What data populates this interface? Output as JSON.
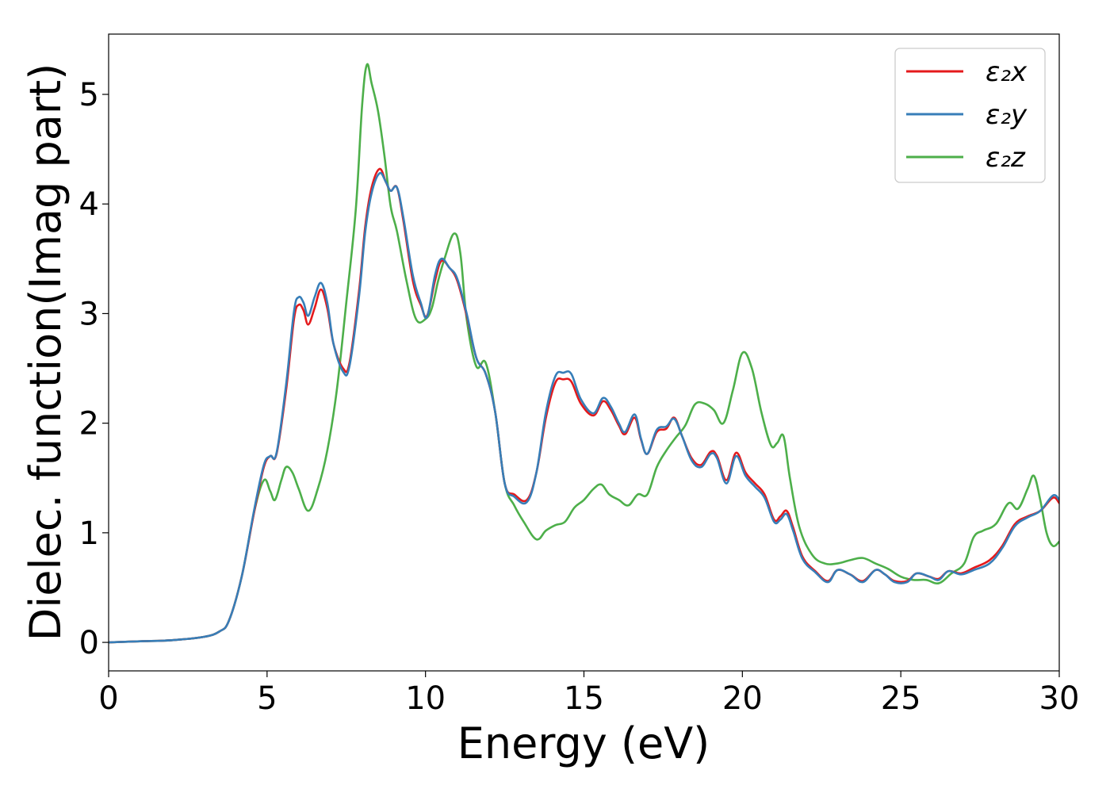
{
  "chart_data": {
    "type": "line",
    "title": "",
    "xlabel": "Energy (eV)",
    "ylabel": "Dielec. function(Imag part)",
    "xlim": [
      0,
      30
    ],
    "ylim": [
      -0.26,
      5.55
    ],
    "xticks": [
      0,
      5,
      10,
      15,
      20,
      25,
      30
    ],
    "yticks": [
      0,
      1,
      2,
      3,
      4,
      5
    ],
    "grid": false,
    "legend_position": "top-right",
    "series": [
      {
        "name": "ε₂x",
        "color": "#e41a1c",
        "points": [
          [
            0,
            0
          ],
          [
            1,
            0.01
          ],
          [
            2,
            0.02
          ],
          [
            3,
            0.05
          ],
          [
            3.5,
            0.1
          ],
          [
            3.8,
            0.2
          ],
          [
            4.2,
            0.6
          ],
          [
            4.6,
            1.2
          ],
          [
            4.9,
            1.6
          ],
          [
            5.1,
            1.7
          ],
          [
            5.3,
            1.72
          ],
          [
            5.6,
            2.3
          ],
          [
            5.85,
            2.95
          ],
          [
            6.0,
            3.08
          ],
          [
            6.15,
            3.03
          ],
          [
            6.3,
            2.9
          ],
          [
            6.5,
            3.05
          ],
          [
            6.7,
            3.22
          ],
          [
            6.9,
            3.05
          ],
          [
            7.1,
            2.72
          ],
          [
            7.4,
            2.5
          ],
          [
            7.6,
            2.55
          ],
          [
            7.9,
            3.2
          ],
          [
            8.1,
            3.8
          ],
          [
            8.3,
            4.15
          ],
          [
            8.55,
            4.32
          ],
          [
            8.75,
            4.2
          ],
          [
            8.9,
            4.12
          ],
          [
            9.1,
            4.15
          ],
          [
            9.3,
            3.85
          ],
          [
            9.6,
            3.3
          ],
          [
            9.85,
            3.08
          ],
          [
            10.05,
            2.98
          ],
          [
            10.3,
            3.3
          ],
          [
            10.5,
            3.48
          ],
          [
            10.75,
            3.42
          ],
          [
            11.0,
            3.3
          ],
          [
            11.3,
            2.98
          ],
          [
            11.6,
            2.6
          ],
          [
            11.9,
            2.45
          ],
          [
            12.2,
            2.1
          ],
          [
            12.5,
            1.45
          ],
          [
            12.8,
            1.35
          ],
          [
            13.2,
            1.3
          ],
          [
            13.5,
            1.55
          ],
          [
            13.8,
            2.05
          ],
          [
            14.1,
            2.37
          ],
          [
            14.35,
            2.4
          ],
          [
            14.6,
            2.38
          ],
          [
            14.9,
            2.18
          ],
          [
            15.3,
            2.07
          ],
          [
            15.6,
            2.2
          ],
          [
            15.85,
            2.12
          ],
          [
            16.1,
            1.98
          ],
          [
            16.3,
            1.9
          ],
          [
            16.6,
            2.05
          ],
          [
            16.8,
            1.85
          ],
          [
            17.0,
            1.72
          ],
          [
            17.3,
            1.92
          ],
          [
            17.6,
            1.95
          ],
          [
            17.85,
            2.05
          ],
          [
            18.1,
            1.88
          ],
          [
            18.4,
            1.68
          ],
          [
            18.7,
            1.62
          ],
          [
            19.0,
            1.74
          ],
          [
            19.2,
            1.7
          ],
          [
            19.5,
            1.48
          ],
          [
            19.8,
            1.73
          ],
          [
            20.1,
            1.55
          ],
          [
            20.4,
            1.45
          ],
          [
            20.7,
            1.35
          ],
          [
            21.0,
            1.12
          ],
          [
            21.2,
            1.15
          ],
          [
            21.4,
            1.2
          ],
          [
            21.6,
            1.05
          ],
          [
            21.9,
            0.78
          ],
          [
            22.3,
            0.65
          ],
          [
            22.7,
            0.56
          ],
          [
            23.0,
            0.66
          ],
          [
            23.4,
            0.62
          ],
          [
            23.8,
            0.56
          ],
          [
            24.2,
            0.66
          ],
          [
            24.5,
            0.62
          ],
          [
            24.8,
            0.56
          ],
          [
            25.2,
            0.56
          ],
          [
            25.5,
            0.63
          ],
          [
            25.9,
            0.6
          ],
          [
            26.2,
            0.58
          ],
          [
            26.5,
            0.65
          ],
          [
            26.9,
            0.63
          ],
          [
            27.3,
            0.68
          ],
          [
            27.8,
            0.75
          ],
          [
            28.2,
            0.88
          ],
          [
            28.6,
            1.08
          ],
          [
            29.0,
            1.15
          ],
          [
            29.4,
            1.2
          ],
          [
            29.8,
            1.32
          ],
          [
            30.0,
            1.27
          ]
        ]
      },
      {
        "name": "ε₂y",
        "color": "#377eb8",
        "points": [
          [
            0,
            0
          ],
          [
            1,
            0.01
          ],
          [
            2,
            0.02
          ],
          [
            3,
            0.05
          ],
          [
            3.5,
            0.1
          ],
          [
            3.8,
            0.2
          ],
          [
            4.2,
            0.6
          ],
          [
            4.6,
            1.22
          ],
          [
            4.9,
            1.62
          ],
          [
            5.1,
            1.7
          ],
          [
            5.3,
            1.73
          ],
          [
            5.6,
            2.35
          ],
          [
            5.85,
            3.02
          ],
          [
            6.0,
            3.15
          ],
          [
            6.15,
            3.1
          ],
          [
            6.3,
            2.98
          ],
          [
            6.5,
            3.15
          ],
          [
            6.7,
            3.28
          ],
          [
            6.9,
            3.1
          ],
          [
            7.1,
            2.72
          ],
          [
            7.4,
            2.47
          ],
          [
            7.6,
            2.52
          ],
          [
            7.9,
            3.15
          ],
          [
            8.1,
            3.75
          ],
          [
            8.3,
            4.1
          ],
          [
            8.55,
            4.28
          ],
          [
            8.75,
            4.2
          ],
          [
            8.9,
            4.12
          ],
          [
            9.1,
            4.15
          ],
          [
            9.3,
            3.88
          ],
          [
            9.6,
            3.35
          ],
          [
            9.85,
            3.1
          ],
          [
            10.05,
            2.97
          ],
          [
            10.3,
            3.35
          ],
          [
            10.5,
            3.5
          ],
          [
            10.75,
            3.42
          ],
          [
            11.0,
            3.32
          ],
          [
            11.3,
            3.0
          ],
          [
            11.6,
            2.6
          ],
          [
            11.9,
            2.45
          ],
          [
            12.2,
            2.1
          ],
          [
            12.5,
            1.45
          ],
          [
            12.8,
            1.33
          ],
          [
            13.2,
            1.28
          ],
          [
            13.5,
            1.55
          ],
          [
            13.8,
            2.1
          ],
          [
            14.1,
            2.43
          ],
          [
            14.35,
            2.46
          ],
          [
            14.6,
            2.45
          ],
          [
            14.9,
            2.22
          ],
          [
            15.3,
            2.09
          ],
          [
            15.6,
            2.23
          ],
          [
            15.85,
            2.15
          ],
          [
            16.1,
            2.0
          ],
          [
            16.3,
            1.92
          ],
          [
            16.6,
            2.08
          ],
          [
            16.8,
            1.86
          ],
          [
            17.0,
            1.72
          ],
          [
            17.3,
            1.94
          ],
          [
            17.6,
            1.97
          ],
          [
            17.85,
            2.04
          ],
          [
            18.1,
            1.88
          ],
          [
            18.4,
            1.66
          ],
          [
            18.7,
            1.6
          ],
          [
            19.0,
            1.72
          ],
          [
            19.2,
            1.68
          ],
          [
            19.5,
            1.45
          ],
          [
            19.8,
            1.7
          ],
          [
            20.1,
            1.52
          ],
          [
            20.4,
            1.42
          ],
          [
            20.7,
            1.32
          ],
          [
            21.0,
            1.1
          ],
          [
            21.2,
            1.12
          ],
          [
            21.4,
            1.17
          ],
          [
            21.6,
            1.02
          ],
          [
            21.9,
            0.76
          ],
          [
            22.3,
            0.64
          ],
          [
            22.7,
            0.55
          ],
          [
            23.0,
            0.66
          ],
          [
            23.4,
            0.62
          ],
          [
            23.8,
            0.55
          ],
          [
            24.2,
            0.66
          ],
          [
            24.5,
            0.62
          ],
          [
            24.8,
            0.55
          ],
          [
            25.2,
            0.55
          ],
          [
            25.5,
            0.63
          ],
          [
            25.9,
            0.6
          ],
          [
            26.2,
            0.57
          ],
          [
            26.5,
            0.65
          ],
          [
            26.9,
            0.62
          ],
          [
            27.3,
            0.66
          ],
          [
            27.8,
            0.72
          ],
          [
            28.2,
            0.86
          ],
          [
            28.6,
            1.06
          ],
          [
            29.0,
            1.14
          ],
          [
            29.4,
            1.2
          ],
          [
            29.8,
            1.34
          ],
          [
            30.0,
            1.3
          ]
        ]
      },
      {
        "name": "ε₂z",
        "color": "#4daf4a",
        "points": [
          [
            0,
            0
          ],
          [
            1,
            0.01
          ],
          [
            2,
            0.02
          ],
          [
            3,
            0.05
          ],
          [
            3.5,
            0.1
          ],
          [
            3.8,
            0.2
          ],
          [
            4.2,
            0.6
          ],
          [
            4.6,
            1.2
          ],
          [
            4.9,
            1.48
          ],
          [
            5.1,
            1.38
          ],
          [
            5.25,
            1.3
          ],
          [
            5.45,
            1.48
          ],
          [
            5.6,
            1.6
          ],
          [
            5.8,
            1.55
          ],
          [
            6.0,
            1.4
          ],
          [
            6.3,
            1.2
          ],
          [
            6.6,
            1.4
          ],
          [
            6.9,
            1.75
          ],
          [
            7.2,
            2.3
          ],
          [
            7.5,
            3.1
          ],
          [
            7.8,
            3.95
          ],
          [
            8.0,
            4.9
          ],
          [
            8.15,
            5.27
          ],
          [
            8.3,
            5.1
          ],
          [
            8.5,
            4.85
          ],
          [
            8.7,
            4.45
          ],
          [
            8.9,
            3.98
          ],
          [
            9.1,
            3.75
          ],
          [
            9.4,
            3.3
          ],
          [
            9.7,
            2.95
          ],
          [
            10.0,
            2.95
          ],
          [
            10.2,
            3.05
          ],
          [
            10.4,
            3.3
          ],
          [
            10.6,
            3.5
          ],
          [
            10.9,
            3.73
          ],
          [
            11.1,
            3.55
          ],
          [
            11.3,
            2.95
          ],
          [
            11.6,
            2.52
          ],
          [
            11.9,
            2.55
          ],
          [
            12.2,
            2.1
          ],
          [
            12.5,
            1.45
          ],
          [
            12.8,
            1.25
          ],
          [
            13.1,
            1.1
          ],
          [
            13.5,
            0.94
          ],
          [
            13.8,
            1.02
          ],
          [
            14.1,
            1.07
          ],
          [
            14.4,
            1.1
          ],
          [
            14.7,
            1.23
          ],
          [
            15.0,
            1.3
          ],
          [
            15.3,
            1.4
          ],
          [
            15.55,
            1.44
          ],
          [
            15.8,
            1.35
          ],
          [
            16.1,
            1.3
          ],
          [
            16.4,
            1.25
          ],
          [
            16.7,
            1.35
          ],
          [
            17.0,
            1.35
          ],
          [
            17.3,
            1.6
          ],
          [
            17.6,
            1.75
          ],
          [
            17.9,
            1.87
          ],
          [
            18.2,
            1.98
          ],
          [
            18.5,
            2.17
          ],
          [
            18.8,
            2.18
          ],
          [
            19.1,
            2.12
          ],
          [
            19.4,
            2.0
          ],
          [
            19.7,
            2.3
          ],
          [
            20.0,
            2.64
          ],
          [
            20.3,
            2.5
          ],
          [
            20.6,
            2.1
          ],
          [
            20.9,
            1.8
          ],
          [
            21.1,
            1.82
          ],
          [
            21.3,
            1.88
          ],
          [
            21.5,
            1.5
          ],
          [
            21.8,
            1.05
          ],
          [
            22.2,
            0.8
          ],
          [
            22.6,
            0.72
          ],
          [
            23.0,
            0.72
          ],
          [
            23.4,
            0.75
          ],
          [
            23.8,
            0.77
          ],
          [
            24.2,
            0.72
          ],
          [
            24.6,
            0.67
          ],
          [
            25.0,
            0.6
          ],
          [
            25.4,
            0.57
          ],
          [
            25.8,
            0.57
          ],
          [
            26.2,
            0.54
          ],
          [
            26.6,
            0.63
          ],
          [
            27.0,
            0.72
          ],
          [
            27.3,
            0.96
          ],
          [
            27.6,
            1.02
          ],
          [
            28.0,
            1.08
          ],
          [
            28.4,
            1.27
          ],
          [
            28.7,
            1.22
          ],
          [
            29.0,
            1.4
          ],
          [
            29.2,
            1.52
          ],
          [
            29.4,
            1.3
          ],
          [
            29.6,
            1.0
          ],
          [
            29.8,
            0.88
          ],
          [
            30.0,
            0.92
          ]
        ]
      }
    ]
  }
}
